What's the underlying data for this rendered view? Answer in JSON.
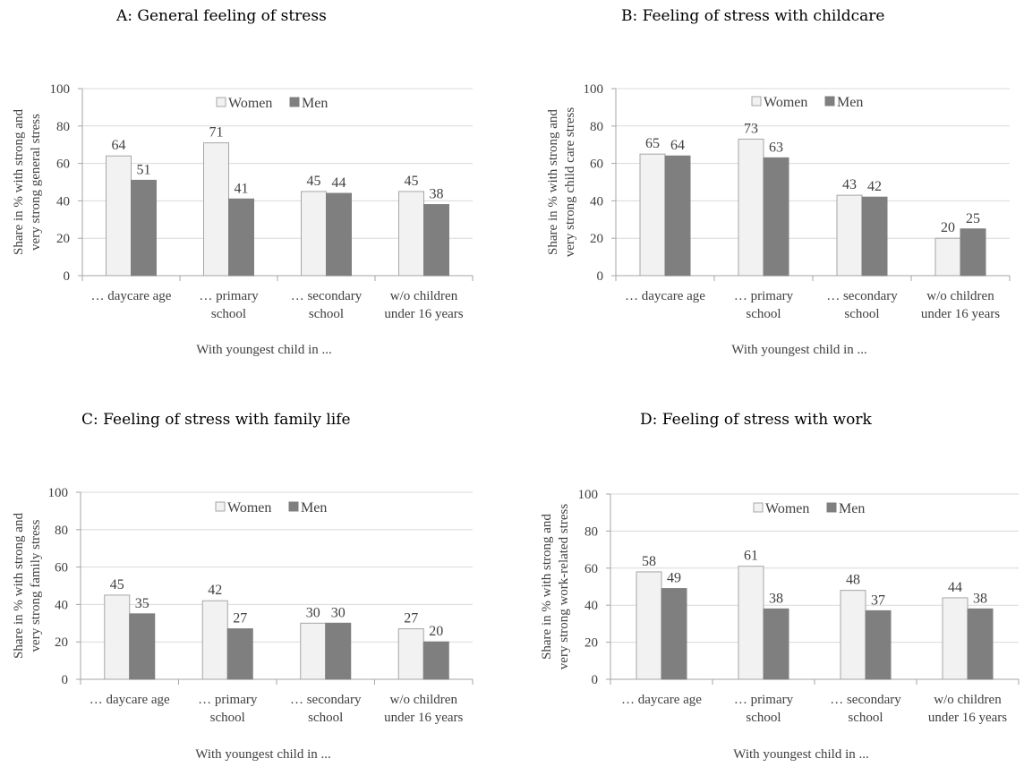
{
  "colors": {
    "women_fill": "#f2f2f2",
    "women_stroke": "#a6a6a6",
    "men_fill": "#7f7f7f",
    "grid": "#d9d9d9",
    "axis": "#a6a6a6",
    "text": "#404040"
  },
  "chart_data": [
    {
      "type": "bar",
      "title": "A: General feeling of stress",
      "xlabel": "With youngest child in ...",
      "ylabel": [
        "Share in % with strong and",
        "very strong general stress"
      ],
      "ylim": [
        0,
        100
      ],
      "yticks": [
        0,
        20,
        40,
        60,
        80,
        100
      ],
      "grid": true,
      "legend": "top-center",
      "categories": [
        [
          "… daycare age"
        ],
        [
          "… primary",
          "school"
        ],
        [
          "… secondary",
          "school"
        ],
        [
          "w/o children",
          "under 16 years"
        ]
      ],
      "series": [
        {
          "name": "Women",
          "values": [
            64,
            71,
            45,
            45
          ]
        },
        {
          "name": "Men",
          "values": [
            51,
            41,
            44,
            38
          ]
        }
      ]
    },
    {
      "type": "bar",
      "title": "B: Feeling of stress with childcare",
      "xlabel": "With youngest child in ...",
      "ylabel": [
        "Share in % with strong and",
        "very strong child care stress"
      ],
      "ylim": [
        0,
        100
      ],
      "yticks": [
        0,
        20,
        40,
        60,
        80,
        100
      ],
      "grid": true,
      "legend": "top-center",
      "categories": [
        [
          "… daycare age"
        ],
        [
          "… primary",
          "school"
        ],
        [
          "… secondary",
          "school"
        ],
        [
          "w/o children",
          "under 16 years"
        ]
      ],
      "series": [
        {
          "name": "Women",
          "values": [
            65,
            73,
            43,
            20
          ]
        },
        {
          "name": "Men",
          "values": [
            64,
            63,
            42,
            25
          ]
        }
      ]
    },
    {
      "type": "bar",
      "title": "C: Feeling of stress with family life",
      "xlabel": "With youngest child in ...",
      "ylabel": [
        "Share in % with strong and",
        "very strong family stress"
      ],
      "ylim": [
        0,
        100
      ],
      "yticks": [
        0,
        20,
        40,
        60,
        80,
        100
      ],
      "grid": true,
      "legend": "top-center",
      "categories": [
        [
          "… daycare age"
        ],
        [
          "… primary",
          "school"
        ],
        [
          "… secondary",
          "school"
        ],
        [
          "w/o children",
          "under 16 years"
        ]
      ],
      "series": [
        {
          "name": "Women",
          "values": [
            45,
            42,
            30,
            27
          ]
        },
        {
          "name": "Men",
          "values": [
            35,
            27,
            30,
            20
          ]
        }
      ]
    },
    {
      "type": "bar",
      "title": "D: Feeling of stress with work",
      "xlabel": "With youngest child in ...",
      "ylabel": [
        "Share in % with strong and",
        "very strong work-related stress"
      ],
      "ylim": [
        0,
        100
      ],
      "yticks": [
        0,
        20,
        40,
        60,
        80,
        100
      ],
      "grid": true,
      "legend": "top-center",
      "categories": [
        [
          "… daycare age"
        ],
        [
          "… primary",
          "school"
        ],
        [
          "… secondary",
          "school"
        ],
        [
          "w/o children",
          "under 16 years"
        ]
      ],
      "series": [
        {
          "name": "Women",
          "values": [
            58,
            61,
            48,
            44
          ]
        },
        {
          "name": "Men",
          "values": [
            49,
            38,
            37,
            38
          ]
        }
      ]
    }
  ]
}
